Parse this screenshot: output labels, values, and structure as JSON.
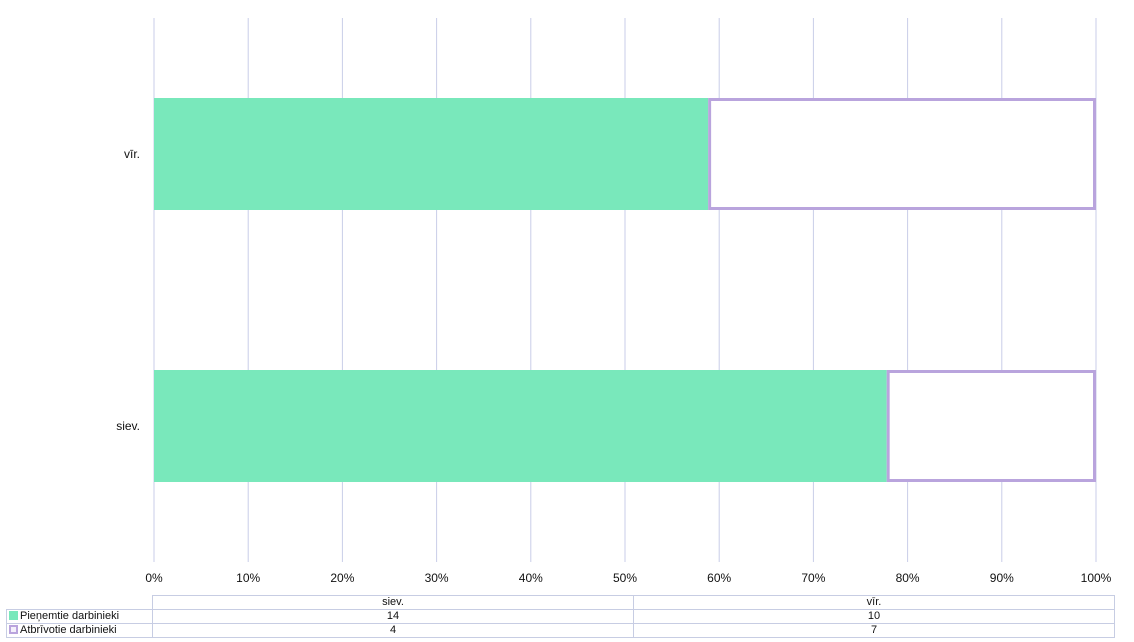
{
  "chart_data": {
    "type": "bar",
    "orientation": "horizontal",
    "stacking": "percent",
    "categories": [
      "siev.",
      "vīr."
    ],
    "series": [
      {
        "name": "Pieņemtie darbinieki",
        "values": [
          14,
          10
        ],
        "color": "#79e8bb",
        "style": "filled"
      },
      {
        "name": "Atbrīvotie darbinieki",
        "values": [
          4,
          7
        ],
        "color": "#b9a4dd",
        "style": "outlined"
      }
    ],
    "xlim": [
      0,
      100
    ],
    "xticks": [
      "0%",
      "10%",
      "20%",
      "30%",
      "40%",
      "50%",
      "60%",
      "70%",
      "80%",
      "90%",
      "100%"
    ],
    "grid": true,
    "legend": "data table below chart"
  }
}
